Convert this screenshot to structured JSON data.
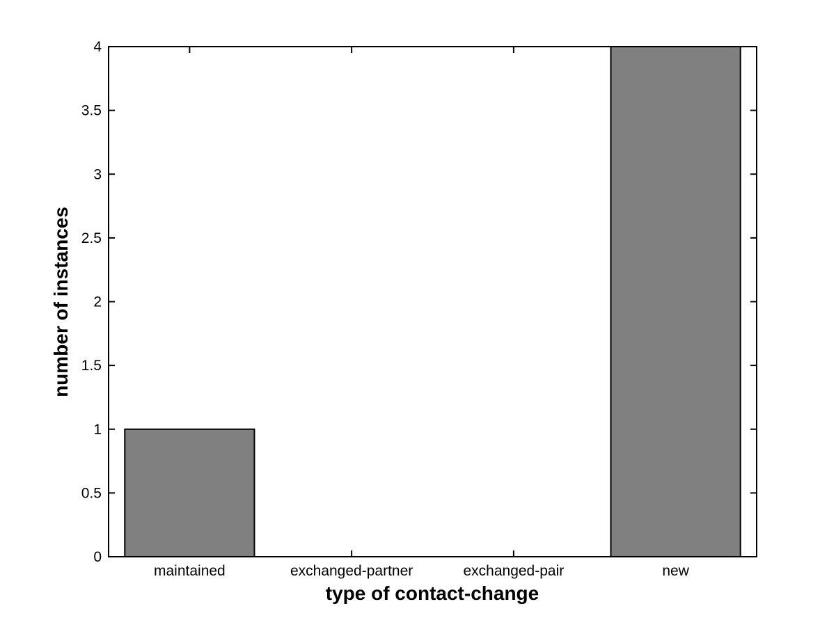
{
  "figure": {
    "background_color": "#ffffff"
  },
  "chart_data": {
    "type": "bar",
    "categories": [
      "maintained",
      "exchanged-partner",
      "exchanged-pair",
      "new"
    ],
    "values": [
      1,
      0,
      0,
      4
    ],
    "xlabel": "type of contact-change",
    "ylabel": "number of instances",
    "ylim": [
      0,
      4
    ],
    "xlim_category_units": [
      0.5,
      4.5
    ],
    "ytick_step": 0.5,
    "ytick_labels": [
      "0",
      "0.5",
      "1",
      "1.5",
      "2",
      "2.5",
      "3",
      "3.5",
      "4"
    ],
    "grid": false,
    "legend": "none",
    "box": true,
    "tick_direction": "in",
    "bar_width_fraction": 0.8,
    "bar_color": "#808080",
    "bar_edge_color": "#000000",
    "axis_color": "#000000",
    "plot_background": "#ffffff"
  }
}
